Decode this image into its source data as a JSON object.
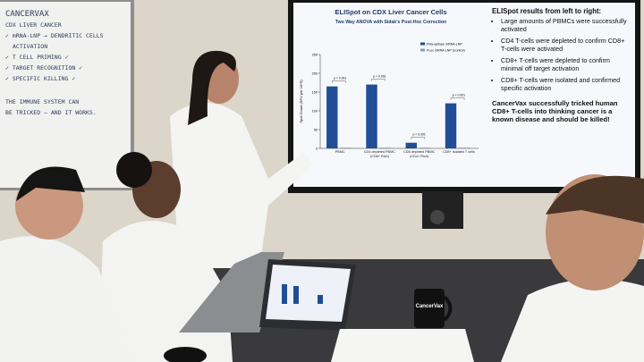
{
  "whiteboard": {
    "lines": [
      "CANCERVAX",
      "CDX LIVER CANCER",
      "✓ mRNA-LNP → DENDRITIC CELLS",
      "ACTIVATION",
      "✓ T CELL PRIMING ✓",
      "✓ TARGET RECOGNITION ✓",
      "✓ SPECIFIC KILLING ✓",
      "THE IMMUNE SYSTEM CAN",
      "BE TRICKED — AND IT WORKS."
    ]
  },
  "screen": {
    "chart": {
      "type": "bar",
      "title": "ELISpot on CDX Liver Cancer Cells",
      "subtitle": "Two Way ANOVA with Sidak's Post-Hoc Correction",
      "y_label": "Spot Count (SFU per 10^5)",
      "categories": [
        "PBMC",
        "CD4 depleted PBMC (CD8+ Rich)",
        "CD8 depleted PBMC (CD4+ Rich)",
        "CD8+ isolated T cells"
      ],
      "series": [
        {
          "name": "Poly-epitope mRNA-LNP",
          "color": "#1f4e96",
          "values": [
            165,
            170,
            15,
            120
          ]
        },
        {
          "name": "FLuc mRNA-LNP (Control)",
          "color": "#8a9bb8",
          "values": [
            2,
            2,
            2,
            2
          ]
        }
      ],
      "annotations": [
        "p < 0.001",
        "p < 0.001",
        "p < 0.001",
        "p < 0.001"
      ],
      "ylim": [
        0,
        250
      ],
      "yticks": [
        0,
        50,
        100,
        150,
        200,
        250
      ],
      "legend": "upper right"
    },
    "heading": "ELISpot results from left to right:",
    "bullets": [
      "Large amounts of PBMCs were successfully activated",
      "CD4 T-cells were depleted to confirm CD8+ T-cells were activated",
      "CD8+ T-cells were depleted to confirm minimal off target activation",
      "CD8+ T-cells were isolated and confirmed specific activation"
    ],
    "conclusion": "CancerVax successfully tricked human CD8+ T-cells into thinking cancer is a known disease and should be killed!"
  },
  "mug": {
    "label": "CancerVax"
  }
}
